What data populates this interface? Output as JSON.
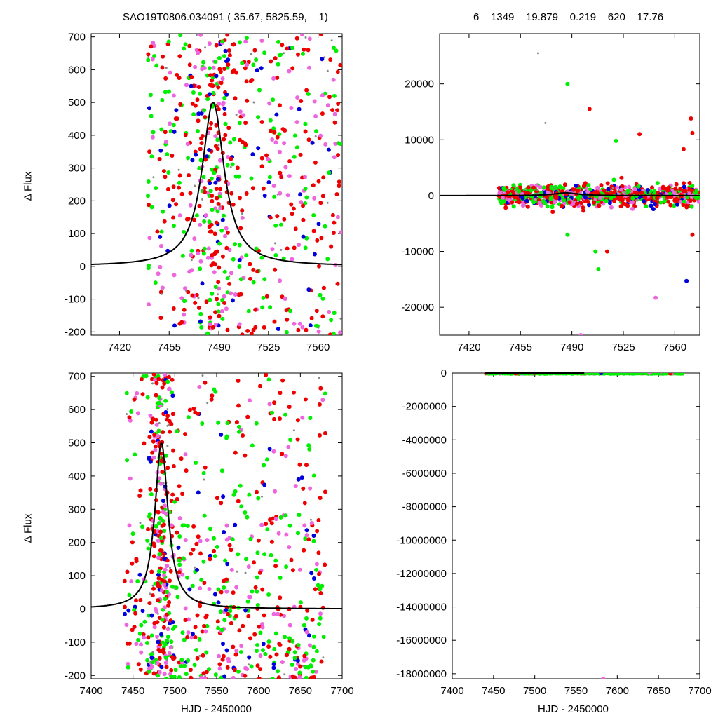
{
  "header": {
    "left_title": "SAO19T0806.034091 ( 35.67, 5825.59,    1)",
    "right_title": "6    1349    19.879    0.219    620    17.76"
  },
  "labels": {
    "ylabel_top": "Δ Flux",
    "ylabel_bottom": "Δ Flux",
    "xlabel_left": "HJD - 2450000",
    "xlabel_right": "HJD - 2450000"
  },
  "colors": {
    "red": "#ee0000",
    "green": "#00ee00",
    "blue": "#0000dd",
    "magenta": "#ee66dd",
    "gray": "#888888",
    "model": "#000000"
  },
  "chart_data": [
    {
      "type": "scatter",
      "panel": "top-left",
      "xlabel": "",
      "ylabel": "Δ Flux",
      "xlim": [
        7400,
        7577
      ],
      "ylim": [
        -210,
        710
      ],
      "xticks": [
        7420,
        7455,
        7490,
        7525,
        7560
      ],
      "yticks": [
        -200,
        -100,
        0,
        100,
        200,
        300,
        400,
        500,
        600,
        700
      ],
      "grid": false,
      "model": {
        "peak_x": 7486,
        "amplitude": 500,
        "width": 9.5
      },
      "data_range_x": [
        7440,
        7577
      ],
      "series_colors": [
        "red",
        "green",
        "blue",
        "magenta",
        "gray"
      ]
    },
    {
      "type": "scatter",
      "panel": "top-right",
      "xlabel": "",
      "ylabel": "",
      "xlim": [
        7400,
        7577
      ],
      "ylim": [
        -25000,
        29000
      ],
      "xticks": [
        7420,
        7455,
        7490,
        7525,
        7560
      ],
      "yticks": [
        -20000,
        -10000,
        0,
        10000,
        20000
      ],
      "grid": false,
      "model": {
        "peak_x": 7486,
        "amplitude": 500,
        "width": 9.5
      },
      "data_range_x": [
        7440,
        7577
      ],
      "outliers": [
        {
          "x": 7467,
          "y": 25500,
          "color": "gray"
        },
        {
          "x": 7487,
          "y": 20000,
          "color": "green"
        },
        {
          "x": 7472,
          "y": 13000,
          "color": "gray"
        },
        {
          "x": 7502,
          "y": 15500,
          "color": "red"
        },
        {
          "x": 7520,
          "y": 9800,
          "color": "green"
        },
        {
          "x": 7536,
          "y": 11000,
          "color": "red"
        },
        {
          "x": 7571,
          "y": 13800,
          "color": "red"
        },
        {
          "x": 7572,
          "y": 11200,
          "color": "red"
        },
        {
          "x": 7566,
          "y": 8300,
          "color": "red"
        },
        {
          "x": 7487,
          "y": -7000,
          "color": "green"
        },
        {
          "x": 7506,
          "y": -10000,
          "color": "green"
        },
        {
          "x": 7508,
          "y": -13200,
          "color": "green"
        },
        {
          "x": 7514,
          "y": -10000,
          "color": "red"
        },
        {
          "x": 7547,
          "y": -18300,
          "color": "magenta"
        },
        {
          "x": 7568,
          "y": -15300,
          "color": "blue"
        },
        {
          "x": 7496,
          "y": -25000,
          "color": "magenta"
        },
        {
          "x": 7572,
          "y": -7000,
          "color": "red"
        }
      ],
      "series_colors": [
        "red",
        "green",
        "blue",
        "magenta",
        "gray"
      ]
    },
    {
      "type": "scatter",
      "panel": "bottom-left",
      "xlabel": "HJD - 2450000",
      "ylabel": "Δ Flux",
      "xlim": [
        7400,
        7700
      ],
      "ylim": [
        -210,
        710
      ],
      "xticks": [
        7400,
        7450,
        7500,
        7550,
        7600,
        7650,
        7700
      ],
      "yticks": [
        -200,
        -100,
        0,
        100,
        200,
        300,
        400,
        500,
        600,
        700
      ],
      "grid": false,
      "model": {
        "peak_x": 7484,
        "amplitude": 500,
        "width": 9.5
      },
      "data_range_x": [
        7440,
        7680
      ],
      "series_colors": [
        "red",
        "green",
        "blue",
        "magenta",
        "gray"
      ]
    },
    {
      "type": "scatter",
      "panel": "bottom-right",
      "xlabel": "HJD - 2450000",
      "ylabel": "",
      "xlim": [
        7400,
        7700
      ],
      "ylim": [
        -18300000,
        0
      ],
      "xticks": [
        7400,
        7450,
        7500,
        7550,
        7600,
        7650,
        7700
      ],
      "yticks": [
        0,
        -2000000,
        -4000000,
        -6000000,
        -8000000,
        -10000000,
        -12000000,
        -14000000,
        -16000000,
        -18000000
      ],
      "grid": false,
      "data_range_x": [
        7440,
        7680
      ],
      "outliers": [
        {
          "x": 7583,
          "y": -18300000,
          "color": "magenta"
        }
      ],
      "series_colors": [
        "red",
        "green",
        "blue",
        "magenta",
        "gray"
      ]
    }
  ]
}
